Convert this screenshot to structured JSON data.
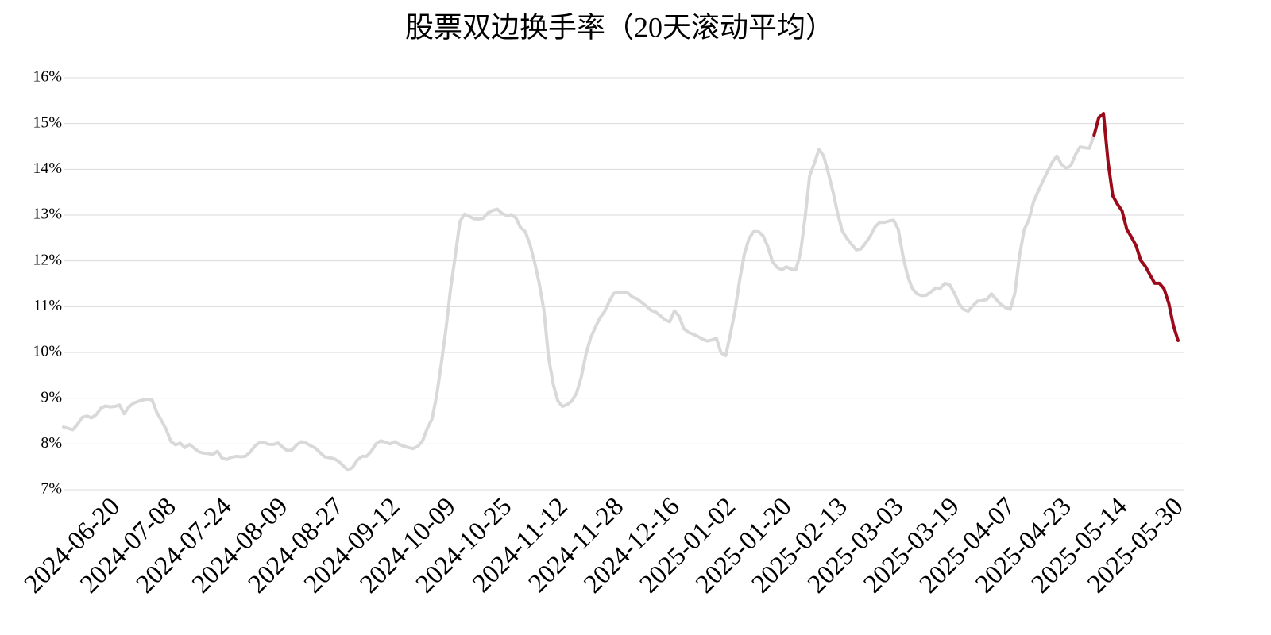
{
  "chart_data": {
    "type": "line",
    "title": "股票双边换手率（20天滚动平均）",
    "categories": [
      null,
      null,
      null,
      null,
      null,
      null,
      null,
      null,
      null,
      null,
      null,
      "2024-06-20",
      null,
      null,
      null,
      null,
      null,
      null,
      null,
      null,
      null,
      null,
      null,
      "2024-07-08",
      null,
      null,
      null,
      null,
      null,
      null,
      null,
      null,
      null,
      null,
      null,
      "2024-07-24",
      null,
      null,
      null,
      null,
      null,
      null,
      null,
      null,
      null,
      null,
      null,
      "2024-08-09",
      null,
      null,
      null,
      null,
      null,
      null,
      null,
      null,
      null,
      null,
      null,
      "2024-08-27",
      null,
      null,
      null,
      null,
      null,
      null,
      null,
      null,
      null,
      null,
      null,
      "2024-09-12",
      null,
      null,
      null,
      null,
      null,
      null,
      null,
      null,
      null,
      null,
      null,
      "2024-10-09",
      null,
      null,
      null,
      null,
      null,
      null,
      null,
      null,
      null,
      null,
      null,
      "2024-10-25",
      null,
      null,
      null,
      null,
      null,
      null,
      null,
      null,
      null,
      null,
      null,
      "2024-11-12",
      null,
      null,
      null,
      null,
      null,
      null,
      null,
      null,
      null,
      null,
      null,
      "2024-11-28",
      null,
      null,
      null,
      null,
      null,
      null,
      null,
      null,
      null,
      null,
      null,
      "2024-12-16",
      null,
      null,
      null,
      null,
      null,
      null,
      null,
      null,
      null,
      null,
      null,
      "2025-01-02",
      null,
      null,
      null,
      null,
      null,
      null,
      null,
      null,
      null,
      null,
      null,
      "2025-01-20",
      null,
      null,
      null,
      null,
      null,
      null,
      null,
      null,
      null,
      null,
      null,
      "2025-02-13",
      null,
      null,
      null,
      null,
      null,
      null,
      null,
      null,
      null,
      null,
      null,
      "2025-03-03",
      null,
      null,
      null,
      null,
      null,
      null,
      null,
      null,
      null,
      null,
      null,
      "2025-03-19",
      null,
      null,
      null,
      null,
      null,
      null,
      null,
      null,
      null,
      null,
      null,
      "2025-04-07",
      null,
      null,
      null,
      null,
      null,
      null,
      null,
      null,
      null,
      null,
      null,
      "2025-04-23",
      null,
      null,
      null,
      null,
      null,
      null,
      null,
      null,
      null,
      null,
      null,
      "2025-05-14",
      null,
      null,
      null,
      null,
      null,
      null,
      null,
      null,
      null,
      null,
      null,
      "2025-05-30"
    ],
    "series": [
      {
        "color": "#d9d9d9",
        "values": [
          8.37,
          8.34,
          8.31,
          8.43,
          8.58,
          8.61,
          8.57,
          8.64,
          8.78,
          8.83,
          8.81,
          8.82,
          8.85,
          8.66,
          8.81,
          8.89,
          8.93,
          8.96,
          8.98,
          8.96,
          8.69,
          8.51,
          8.32,
          8.06,
          7.98,
          8.02,
          7.92,
          7.99,
          7.91,
          7.83,
          7.8,
          7.79,
          7.77,
          7.84,
          7.69,
          7.66,
          7.71,
          7.73,
          7.72,
          7.73,
          7.82,
          7.95,
          8.03,
          8.03,
          7.99,
          7.99,
          8.02,
          7.93,
          7.85,
          7.87,
          7.98,
          8.05,
          8.02,
          7.96,
          7.91,
          7.81,
          7.72,
          7.7,
          7.68,
          7.62,
          7.52,
          7.43,
          7.49,
          7.65,
          7.73,
          7.73,
          7.84,
          8.0,
          8.07,
          8.04,
          8.0,
          8.05,
          7.99,
          7.95,
          7.92,
          7.9,
          7.95,
          8.07,
          8.34,
          8.54,
          9.05,
          9.75,
          10.51,
          11.39,
          12.11,
          12.86,
          13.02,
          12.97,
          12.92,
          12.91,
          12.93,
          13.05,
          13.1,
          13.13,
          13.04,
          12.99,
          13.01,
          12.94,
          12.73,
          12.64,
          12.37,
          11.98,
          11.51,
          10.93,
          9.9,
          9.31,
          8.94,
          8.82,
          8.86,
          8.94,
          9.11,
          9.45,
          9.95,
          10.31,
          10.54,
          10.75,
          10.89,
          11.11,
          11.29,
          11.32,
          11.3,
          11.3,
          11.21,
          11.17,
          11.09,
          11.01,
          10.92,
          10.88,
          10.8,
          10.71,
          10.67,
          10.91,
          10.79,
          10.52,
          10.44,
          10.4,
          10.35,
          10.29,
          10.25,
          10.27,
          10.31,
          9.99,
          9.93,
          10.4,
          10.92,
          11.59,
          12.15,
          12.49,
          12.64,
          12.64,
          12.55,
          12.32,
          11.99,
          11.86,
          11.8,
          11.87,
          11.82,
          11.8,
          12.15,
          12.93,
          13.86,
          14.13,
          14.44,
          14.29,
          13.92,
          13.51,
          13.04,
          12.65,
          12.49,
          12.36,
          12.24,
          12.26,
          12.39,
          12.54,
          12.74,
          12.84,
          12.84,
          12.87,
          12.89,
          12.69,
          12.11,
          11.67,
          11.4,
          11.28,
          11.24,
          11.25,
          11.32,
          11.41,
          11.4,
          11.51,
          11.48,
          11.3,
          11.07,
          10.94,
          10.9,
          11.02,
          11.12,
          11.13,
          11.16,
          11.28,
          11.16,
          11.05,
          10.98,
          10.94,
          11.29,
          12.11,
          12.68,
          12.9,
          13.29,
          13.52,
          13.74,
          13.95,
          14.15,
          14.29,
          14.11,
          14.02,
          14.08,
          14.32,
          14.49,
          14.47,
          14.46,
          14.75,
          null,
          null,
          null,
          null,
          null,
          null,
          null,
          null,
          null,
          null,
          null,
          null,
          null,
          null,
          null,
          null,
          null,
          null
        ]
      },
      {
        "color": "#9b0a1a",
        "values": [
          null,
          null,
          null,
          null,
          null,
          null,
          null,
          null,
          null,
          null,
          null,
          null,
          null,
          null,
          null,
          null,
          null,
          null,
          null,
          null,
          null,
          null,
          null,
          null,
          null,
          null,
          null,
          null,
          null,
          null,
          null,
          null,
          null,
          null,
          null,
          null,
          null,
          null,
          null,
          null,
          null,
          null,
          null,
          null,
          null,
          null,
          null,
          null,
          null,
          null,
          null,
          null,
          null,
          null,
          null,
          null,
          null,
          null,
          null,
          null,
          null,
          null,
          null,
          null,
          null,
          null,
          null,
          null,
          null,
          null,
          null,
          null,
          null,
          null,
          null,
          null,
          null,
          null,
          null,
          null,
          null,
          null,
          null,
          null,
          null,
          null,
          null,
          null,
          null,
          null,
          null,
          null,
          null,
          null,
          null,
          null,
          null,
          null,
          null,
          null,
          null,
          null,
          null,
          null,
          null,
          null,
          null,
          null,
          null,
          null,
          null,
          null,
          null,
          null,
          null,
          null,
          null,
          null,
          null,
          null,
          null,
          null,
          null,
          null,
          null,
          null,
          null,
          null,
          null,
          null,
          null,
          null,
          null,
          null,
          null,
          null,
          null,
          null,
          null,
          null,
          null,
          null,
          null,
          null,
          null,
          null,
          null,
          null,
          null,
          null,
          null,
          null,
          null,
          null,
          null,
          null,
          null,
          null,
          null,
          null,
          null,
          null,
          null,
          null,
          null,
          null,
          null,
          null,
          null,
          null,
          null,
          null,
          null,
          null,
          null,
          null,
          null,
          null,
          null,
          null,
          null,
          null,
          null,
          null,
          null,
          null,
          null,
          null,
          null,
          null,
          null,
          null,
          null,
          null,
          null,
          null,
          null,
          null,
          null,
          null,
          null,
          null,
          null,
          null,
          null,
          null,
          null,
          null,
          null,
          null,
          null,
          null,
          null,
          null,
          null,
          null,
          null,
          null,
          null,
          null,
          null,
          14.75,
          15.13,
          15.22,
          14.15,
          13.42,
          13.24,
          13.09,
          12.69,
          12.52,
          12.33,
          12.01,
          11.88,
          11.69,
          11.51,
          11.51,
          11.39,
          11.08,
          10.59,
          10.26
        ]
      }
    ],
    "ylim": [
      7,
      16
    ],
    "yticks": [
      {
        "value": 7,
        "label": "7%"
      },
      {
        "value": 8,
        "label": "8%"
      },
      {
        "value": 9,
        "label": "9%"
      },
      {
        "value": 10,
        "label": "10%"
      },
      {
        "value": 11,
        "label": "11%"
      },
      {
        "value": 12,
        "label": "12%"
      },
      {
        "value": 13,
        "label": "13%"
      },
      {
        "value": 14,
        "label": "14%"
      },
      {
        "value": 15,
        "label": "15%"
      },
      {
        "value": 16,
        "label": "16%"
      }
    ],
    "grid": true
  }
}
